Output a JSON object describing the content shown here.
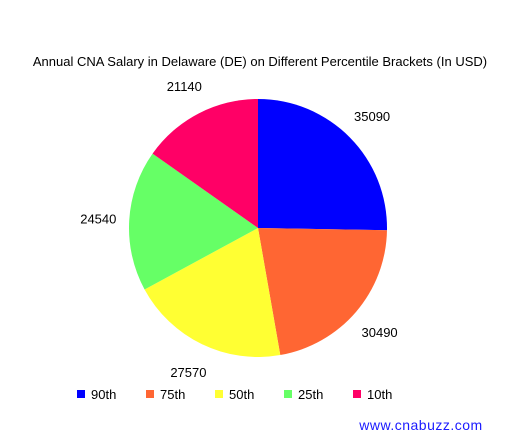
{
  "chart_data": {
    "type": "pie",
    "title": "Annual CNA Salary in Delaware (DE) on Different Percentile Brackets (In USD)",
    "categories": [
      "90th",
      "75th",
      "50th",
      "25th",
      "10th"
    ],
    "values": [
      35090,
      30490,
      27570,
      24540,
      21140
    ],
    "data_labels": [
      "35090",
      "30490",
      "27570",
      "24540",
      "21140"
    ],
    "colors": [
      "#0000ff",
      "#ff6633",
      "#ffff33",
      "#66ff66",
      "#ff0066"
    ],
    "legend_position": "bottom",
    "start_angle": "12 o'clock, clockwise"
  },
  "watermark": "www.cnabuzz.com",
  "watermark_color": "#1a1aff"
}
